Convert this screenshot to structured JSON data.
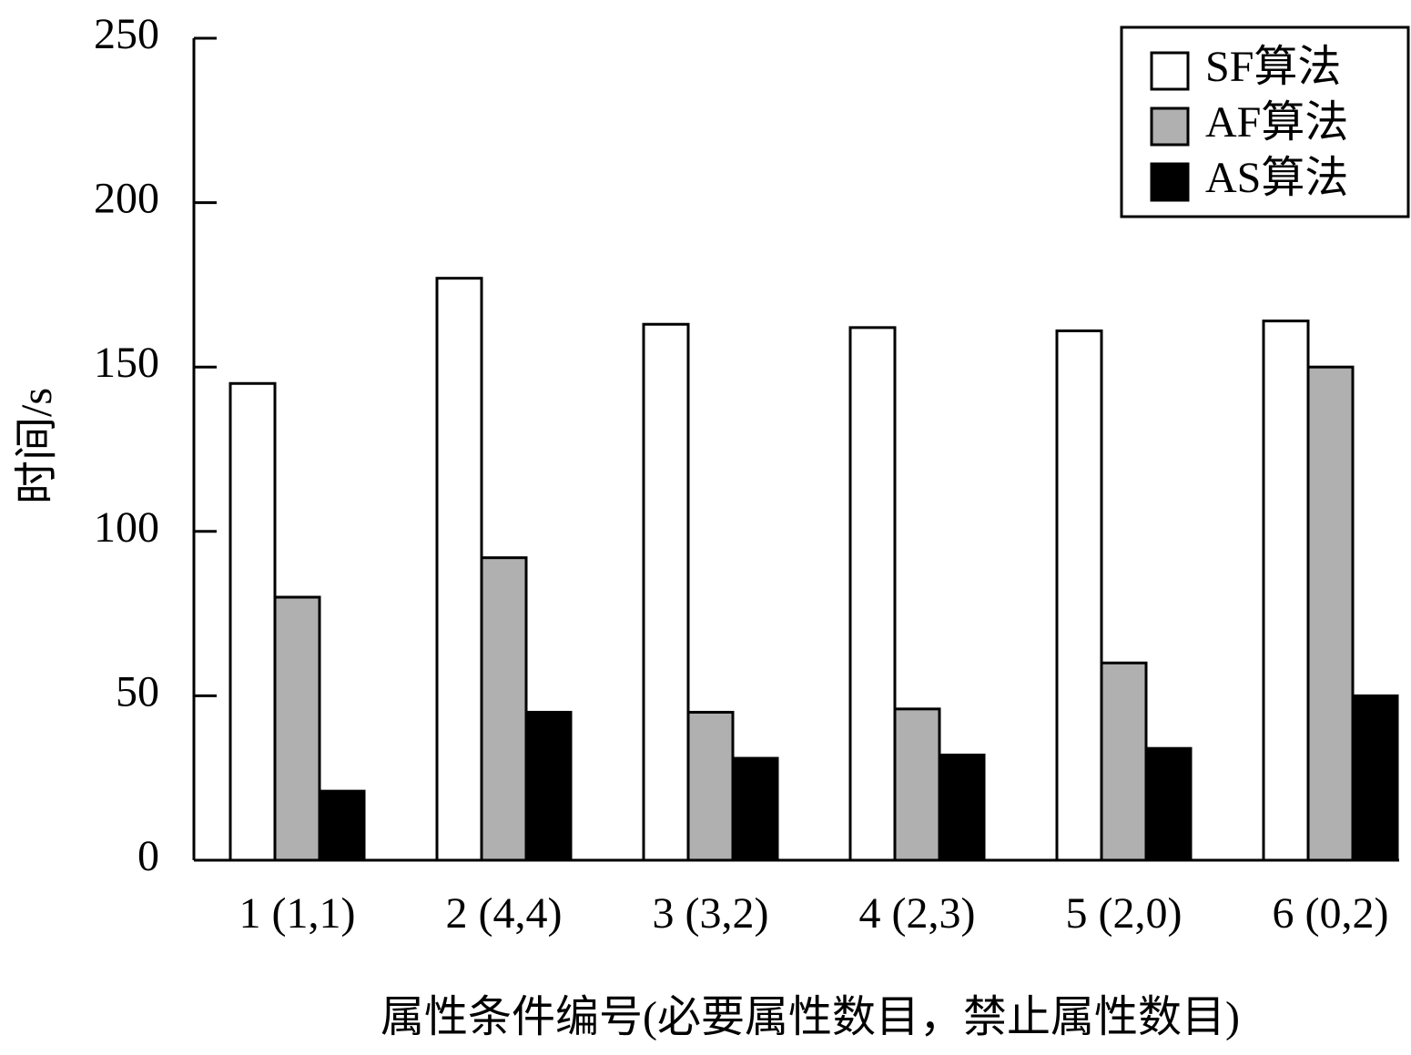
{
  "chart_data": {
    "type": "bar",
    "x_label": "属性条件编号(必要属性数目，禁止属性数目)",
    "y_label": "时间/s",
    "categories": [
      "1 (1,1)",
      "2 (4,4)",
      "3 (3,2)",
      "4 (2,3)",
      "5 (2,0)",
      "6 (0,2)"
    ],
    "series": [
      {
        "name": "SF算法",
        "color": "#ffffff",
        "values": [
          145,
          177,
          163,
          162,
          161,
          164
        ]
      },
      {
        "name": "AF算法",
        "color": "#b0b0b0",
        "values": [
          80,
          92,
          45,
          46,
          60,
          150
        ]
      },
      {
        "name": "AS算法",
        "color": "#000000",
        "values": [
          21,
          45,
          31,
          32,
          34,
          50
        ]
      }
    ],
    "ylim": [
      0,
      250
    ],
    "yticks": [
      0,
      50,
      100,
      150,
      200,
      250
    ],
    "legend": "upper right"
  }
}
